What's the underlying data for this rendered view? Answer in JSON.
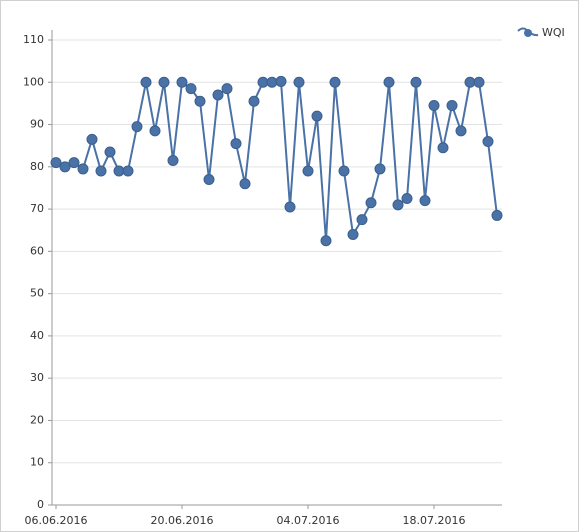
{
  "chart_data": {
    "type": "line",
    "x": [
      "2016-06-06",
      "2016-06-07",
      "2016-06-08",
      "2016-06-09",
      "2016-06-10",
      "2016-06-11",
      "2016-06-12",
      "2016-06-13",
      "2016-06-14",
      "2016-06-15",
      "2016-06-16",
      "2016-06-17",
      "2016-06-18",
      "2016-06-19",
      "2016-06-20",
      "2016-06-21",
      "2016-06-22",
      "2016-06-23",
      "2016-06-24",
      "2016-06-25",
      "2016-06-26",
      "2016-06-27",
      "2016-06-28",
      "2016-06-29",
      "2016-06-30",
      "2016-07-01",
      "2016-07-02",
      "2016-07-03",
      "2016-07-04",
      "2016-07-05",
      "2016-07-06",
      "2016-07-07",
      "2016-07-08",
      "2016-07-09",
      "2016-07-10",
      "2016-07-11",
      "2016-07-12",
      "2016-07-13",
      "2016-07-14",
      "2016-07-15",
      "2016-07-16",
      "2016-07-17",
      "2016-07-18",
      "2016-07-19",
      "2016-07-20",
      "2016-07-21",
      "2016-07-22",
      "2016-07-23",
      "2016-07-24",
      "2016-07-25"
    ],
    "series": [
      {
        "name": "WQI",
        "color": "#4a72a6",
        "values": [
          81,
          80,
          81,
          79.5,
          86.5,
          79,
          83.5,
          79,
          79,
          89.5,
          100,
          88.5,
          100,
          81.5,
          100,
          98.5,
          95.5,
          77,
          97,
          98.5,
          85.5,
          76,
          95.5,
          100,
          100,
          100.2,
          70.5,
          100,
          79,
          92,
          62.5,
          100,
          79,
          64,
          67.5,
          71.5,
          79.5,
          100,
          71,
          72.5,
          100,
          72,
          94.5,
          84.5,
          94.5,
          88.5,
          100,
          100,
          86,
          68.5
        ]
      }
    ],
    "xlim": [
      "2016-06-06",
      "2016-07-25"
    ],
    "xticks": [
      {
        "value": "2016-06-06",
        "label": "06.06.2016"
      },
      {
        "value": "2016-06-20",
        "label": "20.06.2016"
      },
      {
        "value": "2016-07-04",
        "label": "04.07.2016"
      },
      {
        "value": "2016-07-18",
        "label": "18.07.2016"
      }
    ],
    "ylim": [
      0,
      110
    ],
    "yticks": [
      0,
      10,
      20,
      30,
      40,
      50,
      60,
      70,
      80,
      90,
      100,
      110
    ],
    "grid": true,
    "legend": "top-right"
  }
}
